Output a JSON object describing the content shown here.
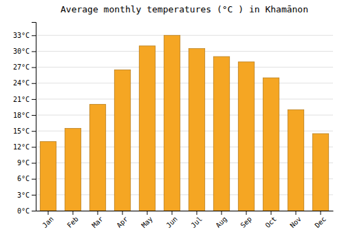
{
  "chart_data": {
    "type": "bar",
    "title": "Average monthly temperatures (°C ) in Khamānon",
    "categories": [
      "Jan",
      "Feb",
      "Mar",
      "Apr",
      "May",
      "Jun",
      "Jul",
      "Aug",
      "Sep",
      "Oct",
      "Nov",
      "Dec"
    ],
    "values": [
      13.0,
      15.5,
      20.0,
      26.5,
      31.0,
      33.0,
      30.5,
      29.0,
      28.0,
      25.0,
      19.0,
      14.5
    ],
    "color": "#F5A623",
    "ylim": [
      0,
      35.5
    ],
    "yticks": [
      {
        "value": 0,
        "label": "0°C"
      },
      {
        "value": 3,
        "label": "3°C"
      },
      {
        "value": 6,
        "label": "6°C"
      },
      {
        "value": 9,
        "label": "9°C"
      },
      {
        "value": 12,
        "label": "12°C"
      },
      {
        "value": 15,
        "label": "15°C"
      },
      {
        "value": 18,
        "label": "18°C"
      },
      {
        "value": 21,
        "label": "21°C"
      },
      {
        "value": 24,
        "label": "24°C"
      },
      {
        "value": 27,
        "label": "27°C"
      },
      {
        "value": 30,
        "label": "30°C"
      },
      {
        "value": 33,
        "label": "33°C"
      }
    ],
    "grid": true
  }
}
